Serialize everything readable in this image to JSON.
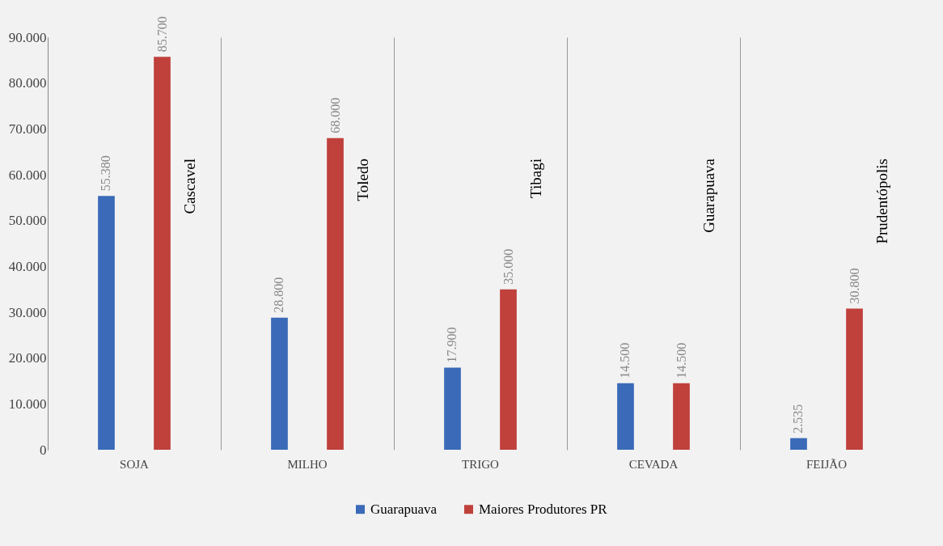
{
  "chart_data": {
    "type": "bar",
    "categories": [
      "SOJA",
      "MILHO",
      "TRIGO",
      "CEVADA",
      "FEIJÃO"
    ],
    "series": [
      {
        "name": "Guarapuava",
        "color": "#3a6ab8",
        "values": [
          55380,
          28800,
          17900,
          14500,
          2535
        ],
        "value_labels": [
          "55.380",
          "28.800",
          "17.900",
          "14.500",
          "2.535"
        ]
      },
      {
        "name": "Maiores Produtores PR",
        "color": "#c0403c",
        "values": [
          85700,
          68000,
          35000,
          14500,
          30800
        ],
        "value_labels": [
          "85.700",
          "68.000",
          "35.000",
          "14.500",
          "30.800"
        ]
      }
    ],
    "annotations": [
      "Cascavel",
      "Toledo",
      "Tibagi",
      "Guarapuava",
      "Prudentópolis"
    ],
    "ylim": [
      0,
      90000
    ],
    "yticks": [
      {
        "value": 0,
        "label": "0"
      },
      {
        "value": 10000,
        "label": "10.000"
      },
      {
        "value": 20000,
        "label": "20.000"
      },
      {
        "value": 30000,
        "label": "30.000"
      },
      {
        "value": 40000,
        "label": "40.000"
      },
      {
        "value": 50000,
        "label": "50.000"
      },
      {
        "value": 60000,
        "label": "60.000"
      },
      {
        "value": 70000,
        "label": "70.000"
      },
      {
        "value": 80000,
        "label": "80.000"
      },
      {
        "value": 90000,
        "label": "90.000"
      }
    ],
    "grid": "x",
    "legend": "bottom"
  }
}
